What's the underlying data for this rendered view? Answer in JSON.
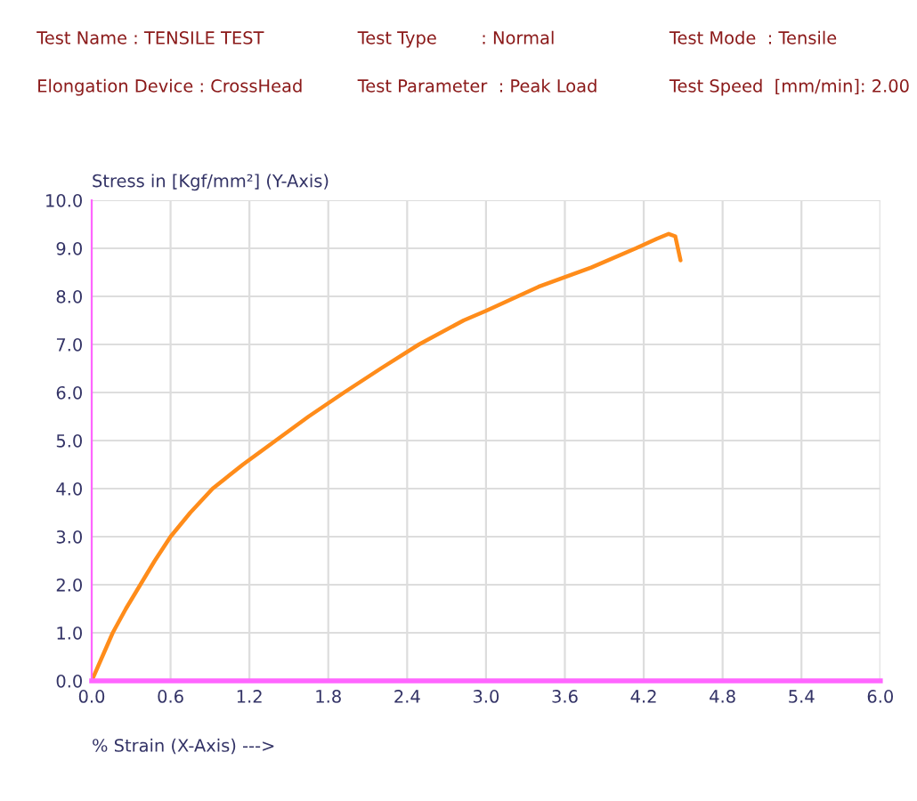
{
  "chart_data": {
    "type": "line",
    "title": "Test Name : TENSILE TEST",
    "annotations": [
      "Test Type        : Normal",
      "Test Mode  : Tensile",
      "Elongation Device : CrossHead",
      "Test Parameter  : Peak Load",
      "Test Speed  [mm/min]: 2.00"
    ],
    "xlabel": "% Strain (X-Axis) --->",
    "ylabel": "Stress in [Kgf/mm²] (Y-Axis)",
    "series": [
      {
        "color": "#ff8c1a",
        "x": [
          0,
          0.08,
          0.16,
          0.26,
          0.37,
          0.48,
          0.6,
          0.75,
          0.92,
          1.15,
          1.4,
          1.65,
          1.92,
          2.2,
          2.49,
          2.83,
          3.0,
          3.4,
          3.8,
          4.14,
          4.3,
          4.39,
          4.44,
          4.46,
          4.48
        ],
        "values": [
          0,
          0.5,
          1.0,
          1.5,
          2.0,
          2.5,
          3.0,
          3.5,
          4.0,
          4.5,
          5.0,
          5.5,
          6.0,
          6.5,
          7.0,
          7.5,
          7.7,
          8.2,
          8.6,
          9.0,
          9.2,
          9.3,
          9.25,
          9.0,
          8.75
        ]
      }
    ],
    "xlim": [
      0,
      6.0
    ],
    "ylim": [
      0,
      10.0
    ],
    "xticks": [
      {
        "value": 0,
        "label": "0.0"
      },
      0.6,
      1.2,
      1.8,
      2.4,
      {
        "value": 3,
        "label": "3.0"
      },
      3.6,
      4.2,
      4.8,
      5.4,
      {
        "value": 6,
        "label": "6.0"
      }
    ],
    "yticks": [
      {
        "value": 0,
        "label": "0.0"
      },
      {
        "value": 1,
        "label": "1.0"
      },
      {
        "value": 2,
        "label": "2.0"
      },
      {
        "value": 3,
        "label": "3.0"
      },
      {
        "value": 4,
        "label": "4.0"
      },
      {
        "value": 5,
        "label": "5.0"
      },
      {
        "value": 6,
        "label": "6.0"
      },
      {
        "value": 7,
        "label": "7.0"
      },
      {
        "value": 8,
        "label": "8.0"
      },
      {
        "value": 9,
        "label": "9.0"
      },
      {
        "value": 10,
        "label": "10.0"
      }
    ],
    "grid": true,
    "legend": false,
    "marker": "none",
    "line_style": "solid"
  }
}
